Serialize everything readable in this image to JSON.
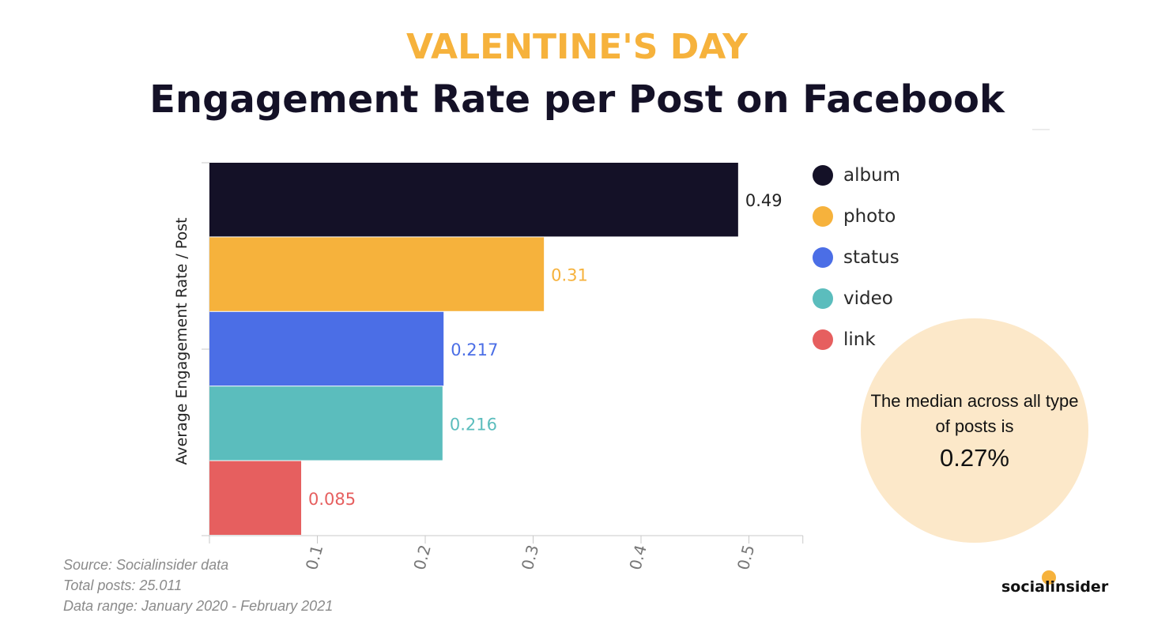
{
  "heading": {
    "top": "VALENTINE'S DAY",
    "main": "Engagement Rate per Post on Facebook"
  },
  "chart_data": {
    "type": "bar",
    "orientation": "horizontal",
    "categories": [
      "album",
      "photo",
      "status",
      "video",
      "link"
    ],
    "values": [
      0.49,
      0.31,
      0.217,
      0.216,
      0.085
    ],
    "value_labels": [
      "0.49",
      "0.31",
      "0.217",
      "0.216",
      "0.085"
    ],
    "colors": [
      "#141127",
      "#f6b23c",
      "#4b6ee6",
      "#5bbdbd",
      "#e65f5f"
    ],
    "ylabel": "Average Engagement Rate / Post",
    "xlabel": "",
    "xlim": [
      0,
      0.55
    ],
    "xticks": [
      0.1,
      0.2,
      0.3,
      0.4,
      0.5
    ],
    "xtick_labels": [
      "0.1",
      "0.2",
      "0.3",
      "0.4",
      "0.5"
    ],
    "grid": false,
    "legend_position": "right"
  },
  "legend": {
    "items": [
      {
        "label": "album",
        "color": "#141127"
      },
      {
        "label": "photo",
        "color": "#f6b23c"
      },
      {
        "label": "status",
        "color": "#4b6ee6"
      },
      {
        "label": "video",
        "color": "#5bbdbd"
      },
      {
        "label": "link",
        "color": "#e65f5f"
      }
    ]
  },
  "median": {
    "text": "The median across all type of posts is",
    "value": "0.27%"
  },
  "source": {
    "line1": "Source: Socialinsider data",
    "line2": "Total posts: 25.011",
    "line3": "Data range: January 2020 - February 2021"
  },
  "brand": {
    "name": "socialinsider",
    "accent": "#f6b23c"
  }
}
